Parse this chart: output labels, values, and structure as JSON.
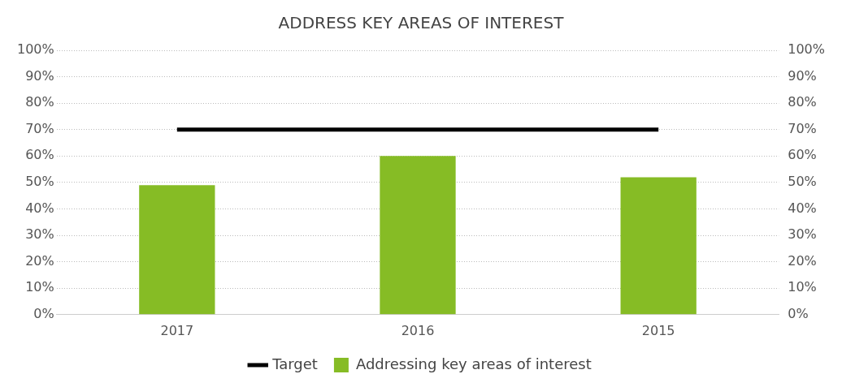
{
  "chart_data": {
    "type": "bar",
    "title": "ADDRESS KEY AREAS OF INTEREST",
    "categories": [
      "2017",
      "2016",
      "2015"
    ],
    "series": [
      {
        "name": "Addressing key areas of interest",
        "color": "#86bc25",
        "values": [
          49,
          60,
          52
        ]
      },
      {
        "name": "Target",
        "type": "line",
        "color": "#000000",
        "values": [
          70,
          70,
          70
        ],
        "marker": "none"
      }
    ],
    "ylim": [
      0,
      100
    ],
    "yticks": [
      {
        "value": 0,
        "label": "0%"
      },
      {
        "value": 10,
        "label": "10%"
      },
      {
        "value": 20,
        "label": "20%"
      },
      {
        "value": 30,
        "label": "30%"
      },
      {
        "value": 40,
        "label": "40%"
      },
      {
        "value": 50,
        "label": "50%"
      },
      {
        "value": 60,
        "label": "60%"
      },
      {
        "value": 70,
        "label": "70%"
      },
      {
        "value": 80,
        "label": "80%"
      },
      {
        "value": 90,
        "label": "90%"
      },
      {
        "value": 100,
        "label": "100%"
      }
    ],
    "y2lim": [
      0,
      100
    ],
    "y2ticks": [
      {
        "value": 0,
        "label": "0%"
      },
      {
        "value": 10,
        "label": "10%"
      },
      {
        "value": 20,
        "label": "20%"
      },
      {
        "value": 30,
        "label": "30%"
      },
      {
        "value": 40,
        "label": "40%"
      },
      {
        "value": 50,
        "label": "50%"
      },
      {
        "value": 60,
        "label": "60%"
      },
      {
        "value": 70,
        "label": "70%"
      },
      {
        "value": 80,
        "label": "80%"
      },
      {
        "value": 90,
        "label": "90%"
      },
      {
        "value": 100,
        "label": "100%"
      }
    ],
    "grid": "y",
    "legend": "bottom"
  }
}
